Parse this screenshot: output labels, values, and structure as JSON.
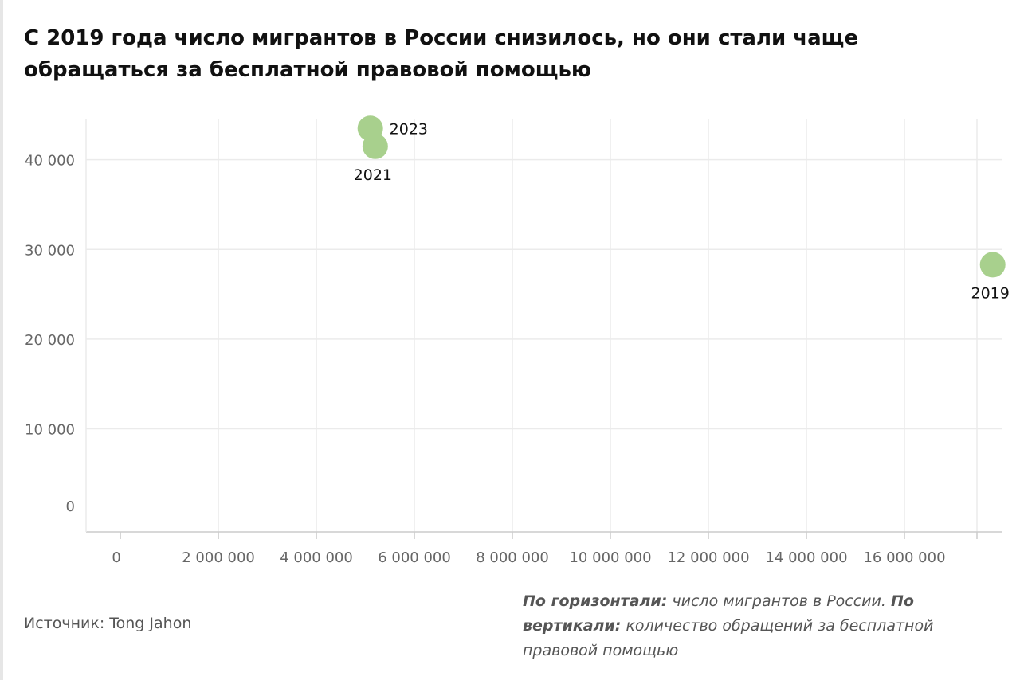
{
  "title": "С 2019 года число мигрантов в России снизилось, но они стали чаще обращаться за бесплатной правовой помощью",
  "source": "Источник: Tong Jahon",
  "axis_note": {
    "x_prefix": "По горизонтали:",
    "x_text": "число мигрантов в России.",
    "y_prefix": "По вертикали:",
    "y_text": "количество обращений за бесплатной правовой помощью"
  },
  "colors": {
    "point": "#a8d08d",
    "grid": "#ebebeb",
    "tick_text": "#666666",
    "label_text": "#111111"
  },
  "chart_data": {
    "type": "scatter",
    "title": "С 2019 года число мигрантов в России снизилось, но они стали чаще обращаться за бесплатной правовой помощью",
    "xlabel": "",
    "ylabel": "",
    "xlim": [
      -700000,
      18000000
    ],
    "ylim": [
      -1500,
      44500
    ],
    "x_ticks": [
      0,
      2000000,
      4000000,
      6000000,
      8000000,
      10000000,
      12000000,
      14000000,
      16000000
    ],
    "x_tick_labels": [
      "0",
      "2 000 000",
      "4 000 000",
      "6 000 000",
      "8 000 000",
      "10 000 000",
      "12 000 000",
      "14 000 000",
      "16 000 000"
    ],
    "y_ticks": [
      0,
      10000,
      20000,
      30000,
      40000
    ],
    "y_tick_labels": [
      "0",
      "10 000",
      "20 000",
      "30 000",
      "40 000"
    ],
    "grid": true,
    "points": [
      {
        "label": "2019",
        "x": 17800000,
        "y": 28300,
        "label_position": "below"
      },
      {
        "label": "2021",
        "x": 5200000,
        "y": 41500,
        "label_position": "below"
      },
      {
        "label": "2023",
        "x": 5100000,
        "y": 43500,
        "label_position": "right"
      }
    ]
  }
}
